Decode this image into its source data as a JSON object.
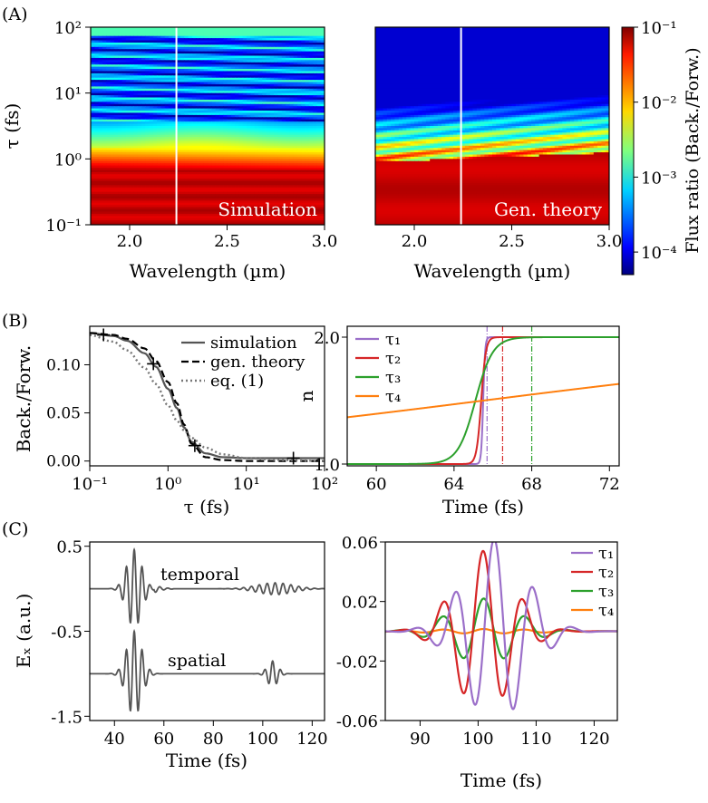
{
  "panel_labels": [
    "(A)",
    "(B)",
    "(C)"
  ],
  "colors": {
    "tau1": "#9b6fc9",
    "tau2": "#d62728",
    "tau3": "#2ca02c",
    "tau4": "#ff7f0e",
    "black": "#000000",
    "gray": "#555555",
    "white_line": "#ffffff"
  },
  "chart_data": [
    {
      "id": "A_left",
      "type": "heatmap",
      "xlabel": "Wavelength (µm)",
      "ylabel": "τ (fs)",
      "xlim": [
        1.8,
        3.0
      ],
      "ylim": [
        0.1,
        100
      ],
      "yscale": "log",
      "xticks": [
        "2.0",
        "2.5",
        "3.0"
      ],
      "yticks": [
        "10⁻¹",
        "10⁰",
        "10¹",
        "10²"
      ],
      "annotation": "Simulation",
      "vertical_marker_x": 2.24
    },
    {
      "id": "A_right",
      "type": "heatmap",
      "xlabel": "Wavelength (µm)",
      "xlim": [
        1.8,
        3.0
      ],
      "ylim": [
        0.1,
        100
      ],
      "yscale": "log",
      "xticks": [
        "2.0",
        "2.5",
        "3.0"
      ],
      "annotation": "Gen. theory",
      "vertical_marker_x": 2.24,
      "colorbar": {
        "label": "Flux ratio (Back./Forw.)",
        "scale": "log",
        "range": [
          5e-05,
          0.1
        ],
        "ticks": [
          "10⁻¹",
          "10⁻²",
          "10⁻³",
          "10⁻⁴"
        ]
      }
    },
    {
      "id": "B_left",
      "type": "line",
      "xlabel": "τ (fs)",
      "ylabel": "Back./Forw.",
      "xscale": "log",
      "xlim": [
        0.1,
        100
      ],
      "ylim": [
        -0.005,
        0.14
      ],
      "xticks": [
        "10⁻¹",
        "10⁰",
        "10¹",
        "10²"
      ],
      "yticks": [
        "0.00",
        "0.05",
        "0.10"
      ],
      "legend_position": "top-right",
      "series": [
        {
          "name": "simulation",
          "style": "solid",
          "x": [
            0.1,
            0.2,
            0.3,
            0.5,
            0.7,
            1.0,
            1.3,
            1.6,
            2.0,
            3.0,
            5.0,
            10,
            30,
            100
          ],
          "y": [
            0.133,
            0.13,
            0.125,
            0.112,
            0.098,
            0.075,
            0.055,
            0.035,
            0.02,
            0.008,
            0.004,
            0.003,
            0.003,
            0.003
          ]
        },
        {
          "name": "gen. theory",
          "style": "dashed",
          "x": [
            0.1,
            0.2,
            0.3,
            0.5,
            0.7,
            1.0,
            1.3,
            1.6,
            2.0,
            3.0,
            5.0,
            10,
            30,
            100
          ],
          "y": [
            0.133,
            0.131,
            0.127,
            0.117,
            0.104,
            0.082,
            0.06,
            0.038,
            0.018,
            0.004,
            0.001,
            0.0,
            0.0,
            0.0
          ]
        },
        {
          "name": "eq. (1)",
          "style": "dotted",
          "x": [
            0.1,
            0.2,
            0.3,
            0.5,
            0.7,
            1.0,
            1.3,
            1.6,
            2.0,
            3.0,
            5.0,
            10,
            30,
            100
          ],
          "y": [
            0.131,
            0.124,
            0.115,
            0.097,
            0.08,
            0.058,
            0.042,
            0.032,
            0.024,
            0.014,
            0.007,
            0.003,
            0.001,
            0.0
          ]
        }
      ],
      "markers": [
        {
          "x": 0.15,
          "y": 0.131
        },
        {
          "x": 0.65,
          "y": 0.101
        },
        {
          "x": 2.2,
          "y": 0.016
        },
        {
          "x": 40,
          "y": 0.003
        }
      ]
    },
    {
      "id": "B_right",
      "type": "line",
      "xlabel": "Time (fs)",
      "ylabel": "n",
      "xlim": [
        58.5,
        72.5
      ],
      "ylim": [
        1.0,
        2.0
      ],
      "xticks": [
        "60",
        "64",
        "68",
        "72"
      ],
      "yticks": [
        "1.0",
        "2.0"
      ],
      "legend_position": "top-left",
      "series": [
        {
          "name": "τ₁",
          "t0": 65.5,
          "tau": 0.05
        },
        {
          "name": "τ₂",
          "t0": 65.4,
          "tau": 0.12
        },
        {
          "name": "τ₃",
          "t0": 65.1,
          "tau": 0.45
        },
        {
          "name": "τ₄",
          "t0": 65.5,
          "tau": 13.0
        }
      ],
      "vertical_markers": [
        {
          "series": "τ₁",
          "x": 65.7
        },
        {
          "series": "τ₂",
          "x": 66.5
        },
        {
          "series": "τ₃",
          "x": 68.0
        }
      ]
    },
    {
      "id": "C_left",
      "type": "line",
      "xlabel": "Time (fs)",
      "ylabel": "Eₓ (a.u.)",
      "xlim": [
        30,
        125
      ],
      "ylim": [
        -1.55,
        0.55
      ],
      "xticks": [
        "40",
        "60",
        "80",
        "100",
        "120"
      ],
      "yticks": [
        "0.5",
        "-0.5",
        "-1.5"
      ],
      "annotations": [
        "temporal",
        "spatial"
      ],
      "series": [
        {
          "name": "temporal",
          "offset": 0.0,
          "main_center": 48,
          "main_width": 4.2,
          "main_amp": 0.46,
          "echo_center": 105,
          "echo_width": 10,
          "echo_amp": 0.07,
          "period": 3.2
        },
        {
          "name": "spatial",
          "offset": -1.0,
          "main_center": 48,
          "main_width": 4.2,
          "main_amp": 0.5,
          "echo_center": 104,
          "echo_width": 3.0,
          "echo_amp": 0.15,
          "period": 3.2
        }
      ]
    },
    {
      "id": "C_right",
      "type": "line",
      "xlabel": "Time (fs)",
      "xlim": [
        84,
        124
      ],
      "ylim": [
        -0.06,
        0.06
      ],
      "xticks": [
        "90",
        "100",
        "110",
        "120"
      ],
      "yticks": [
        "0.06",
        "0.02",
        "-0.02",
        "-0.06"
      ],
      "legend_position": "top-right",
      "series": [
        {
          "name": "τ₁",
          "amp": 0.062,
          "center": 103,
          "width": 7.5,
          "period": 6.8
        },
        {
          "name": "τ₂",
          "amp": 0.054,
          "center": 101,
          "width": 7.0,
          "period": 7.0
        },
        {
          "name": "τ₃",
          "amp": 0.022,
          "center": 101,
          "width": 8.0,
          "period": 7.2
        },
        {
          "name": "τ₄",
          "amp": 0.0015,
          "center": 101,
          "width": 14,
          "period": 7.0
        }
      ]
    }
  ]
}
